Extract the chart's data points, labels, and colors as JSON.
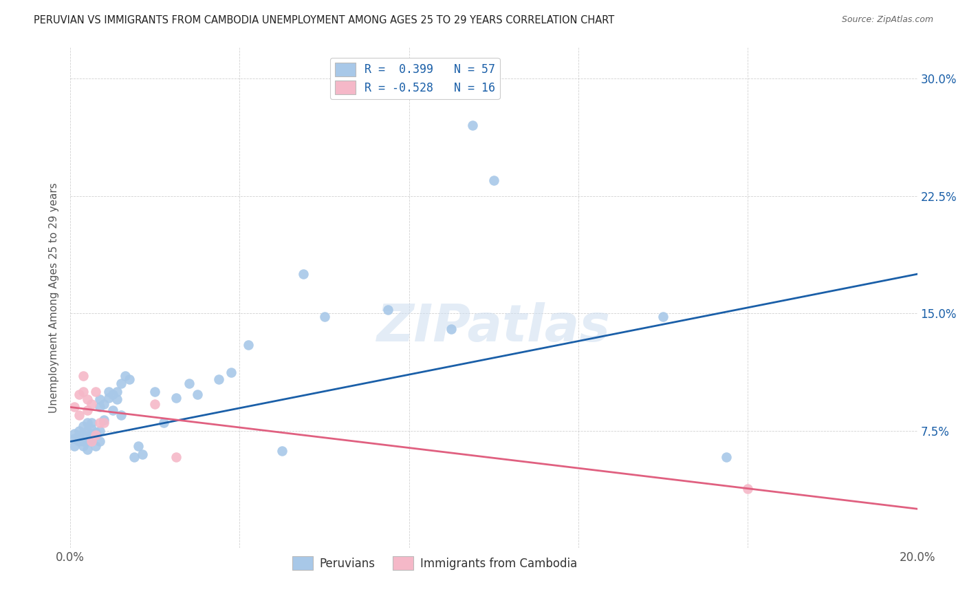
{
  "title": "PERUVIAN VS IMMIGRANTS FROM CAMBODIA UNEMPLOYMENT AMONG AGES 25 TO 29 YEARS CORRELATION CHART",
  "source": "Source: ZipAtlas.com",
  "ylabel": "Unemployment Among Ages 25 to 29 years",
  "xlim": [
    0.0,
    0.2
  ],
  "ylim": [
    0.0,
    0.32
  ],
  "xticks": [
    0.0,
    0.04,
    0.08,
    0.12,
    0.16,
    0.2
  ],
  "xticklabels": [
    "0.0%",
    "",
    "",
    "",
    "",
    "20.0%"
  ],
  "yticks": [
    0.0,
    0.075,
    0.15,
    0.225,
    0.3
  ],
  "yticklabels": [
    "",
    "7.5%",
    "15.0%",
    "22.5%",
    "30.0%"
  ],
  "blue_color": "#a8c8e8",
  "pink_color": "#f5b8c8",
  "blue_line_color": "#1a5fa8",
  "pink_line_color": "#e06080",
  "legend_R1": "R =  0.399   N = 57",
  "legend_R2": "R = -0.528   N = 16",
  "legend_label1": "Peruvians",
  "legend_label2": "Immigrants from Cambodia",
  "watermark": "ZIPatlas",
  "blue_line_x0": 0.0,
  "blue_line_y0": 0.068,
  "blue_line_x1": 0.2,
  "blue_line_y1": 0.175,
  "pink_line_x0": 0.0,
  "pink_line_y0": 0.09,
  "pink_line_x1": 0.2,
  "pink_line_y1": 0.025,
  "peruvian_x": [
    0.001,
    0.001,
    0.001,
    0.002,
    0.002,
    0.002,
    0.003,
    0.003,
    0.003,
    0.003,
    0.004,
    0.004,
    0.004,
    0.004,
    0.005,
    0.005,
    0.005,
    0.005,
    0.006,
    0.006,
    0.006,
    0.007,
    0.007,
    0.007,
    0.007,
    0.008,
    0.008,
    0.009,
    0.009,
    0.01,
    0.01,
    0.011,
    0.011,
    0.012,
    0.012,
    0.013,
    0.014,
    0.015,
    0.016,
    0.017,
    0.02,
    0.022,
    0.025,
    0.028,
    0.03,
    0.035,
    0.038,
    0.042,
    0.05,
    0.055,
    0.06,
    0.075,
    0.09,
    0.095,
    0.1,
    0.14,
    0.155
  ],
  "peruvian_y": [
    0.07,
    0.073,
    0.065,
    0.068,
    0.075,
    0.072,
    0.068,
    0.072,
    0.078,
    0.065,
    0.068,
    0.075,
    0.063,
    0.08,
    0.07,
    0.072,
    0.076,
    0.08,
    0.072,
    0.074,
    0.065,
    0.068,
    0.075,
    0.09,
    0.095,
    0.092,
    0.082,
    0.096,
    0.1,
    0.088,
    0.098,
    0.095,
    0.1,
    0.105,
    0.085,
    0.11,
    0.108,
    0.058,
    0.065,
    0.06,
    0.1,
    0.08,
    0.096,
    0.105,
    0.098,
    0.108,
    0.112,
    0.13,
    0.062,
    0.175,
    0.148,
    0.152,
    0.14,
    0.27,
    0.235,
    0.148,
    0.058
  ],
  "cambodia_x": [
    0.001,
    0.002,
    0.002,
    0.003,
    0.003,
    0.004,
    0.004,
    0.005,
    0.005,
    0.006,
    0.006,
    0.007,
    0.008,
    0.02,
    0.025,
    0.16
  ],
  "cambodia_y": [
    0.09,
    0.085,
    0.098,
    0.1,
    0.11,
    0.088,
    0.095,
    0.092,
    0.068,
    0.072,
    0.1,
    0.08,
    0.08,
    0.092,
    0.058,
    0.038
  ]
}
